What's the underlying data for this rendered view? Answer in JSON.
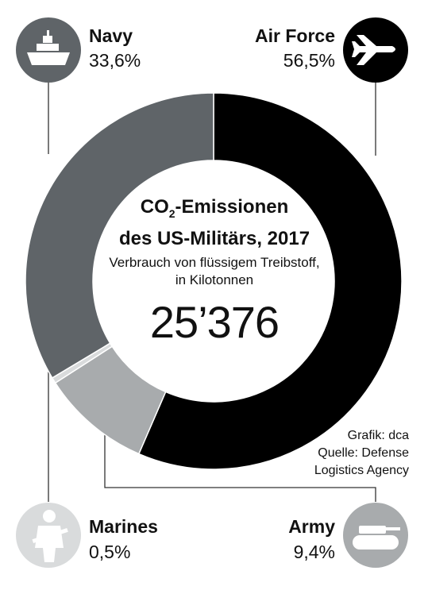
{
  "chart_data": {
    "type": "pie",
    "title_main": "-Emissionen",
    "title_co": "CO",
    "title_sub": "2",
    "title_line2": "des US-Militärs, 2017",
    "subtitle_line1": "Verbrauch von flüssigem Treibstoff,",
    "subtitle_line2": "in Kilotonnen",
    "total": "25’376",
    "slices": [
      {
        "name": "Air Force",
        "value": 56.5,
        "label": "56,5%",
        "color": "#000000",
        "icon": "airplane-icon"
      },
      {
        "name": "Army",
        "value": 9.4,
        "label": "9,4%",
        "color": "#a8abad",
        "icon": "tank-icon"
      },
      {
        "name": "Marines",
        "value": 0.5,
        "label": "0,5%",
        "color": "#d9dbdc",
        "icon": "soldier-icon"
      },
      {
        "name": "Navy",
        "value": 33.6,
        "label": "33,6%",
        "color": "#5f6468",
        "icon": "ship-icon"
      }
    ]
  },
  "credit": {
    "line1": "Grafik: dca",
    "line2": "Quelle: Defense",
    "line3": "Logistics Agency"
  }
}
